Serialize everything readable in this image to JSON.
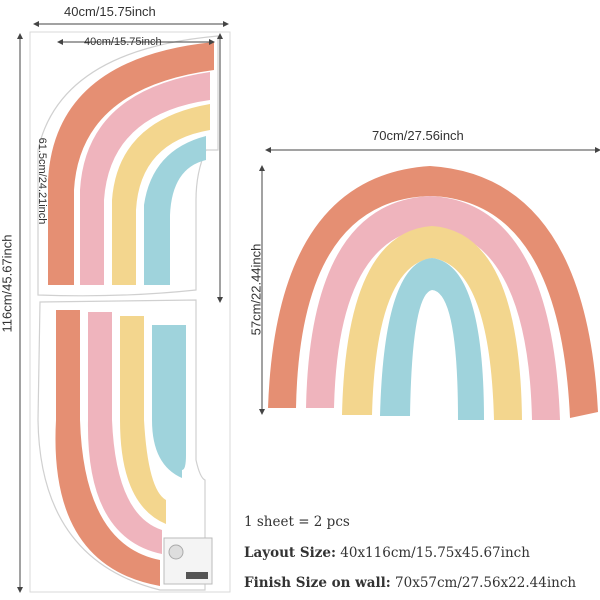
{
  "dimensions": {
    "sheet_width": "40cm/15.75inch",
    "inner_width": "40cm/15.75inch",
    "sheet_height": "116cm/45.67inch",
    "piece_height": "61.5cm/24.21inch",
    "assembled_width": "70cm/27.56inch",
    "assembled_height": "57cm/22.44inch"
  },
  "info": {
    "pieces": "1 sheet = 2 pcs",
    "layout_label": "Layout Size:",
    "layout_value": "40x116cm/15.75x45.67inch",
    "finish_label": "Finish Size on wall:",
    "finish_value": "70x57cm/27.56x22.44inch"
  },
  "colors": {
    "coral": "#e58f73",
    "pink": "#efb4bd",
    "yellow": "#f3d68e",
    "blue": "#9fd3dc",
    "outline": "#cfcfcf"
  }
}
